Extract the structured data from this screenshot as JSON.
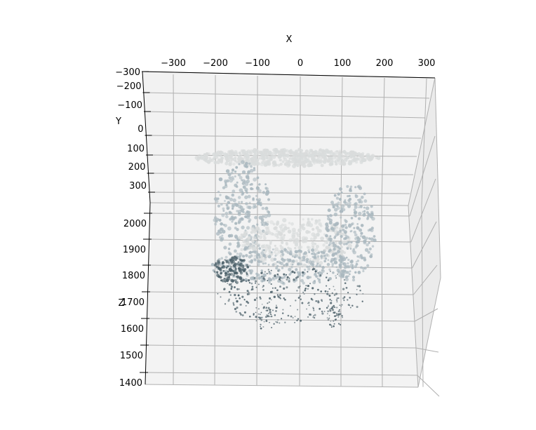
{
  "chart_data": {
    "type": "scatter",
    "projection": "3d",
    "title": "",
    "xlabel": "X",
    "ylabel": "Y",
    "zlabel": "Z",
    "x_ticks": [
      "−300",
      "−200",
      "−100",
      "0",
      "100",
      "200",
      "300"
    ],
    "y_ticks": [
      "−300",
      "−200",
      "−100",
      "0",
      "100",
      "200",
      "300"
    ],
    "z_ticks": [
      "2000",
      "1900",
      "1800",
      "1700",
      "1600",
      "1500",
      "1400"
    ],
    "xlim": [
      -330,
      330
    ],
    "ylim": [
      -300,
      350
    ],
    "zlim": [
      1400,
      2050
    ],
    "grid": true,
    "colors": {
      "pane_back": "#f2f2f2",
      "pane_side": "#ebebeb",
      "pane_floor": "#f4f4f4",
      "point_light": "#d9dcdc",
      "point_mid": "#aab8bf",
      "point_dark": "#4e626b"
    },
    "point_cloud": {
      "description_free": true,
      "clusters": [
        {
          "x": [
            -210,
            150
          ],
          "y": [
            -20,
            10
          ],
          "z": [
            2040,
            2060
          ],
          "tone": "light"
        },
        {
          "x": [
            -170,
            -80
          ],
          "y": [
            0,
            300
          ],
          "z": [
            1780,
            1980
          ],
          "tone": "mid"
        },
        {
          "x": [
            -60,
            80
          ],
          "y": [
            100,
            300
          ],
          "z": [
            1760,
            1880
          ],
          "tone": "light"
        },
        {
          "x": [
            90,
            170
          ],
          "y": [
            50,
            300
          ],
          "z": [
            1770,
            1960
          ],
          "tone": "mid"
        },
        {
          "x": [
            -150,
            130
          ],
          "y": [
            200,
            320
          ],
          "z": [
            1550,
            1760
          ],
          "tone": "dark"
        }
      ]
    }
  }
}
